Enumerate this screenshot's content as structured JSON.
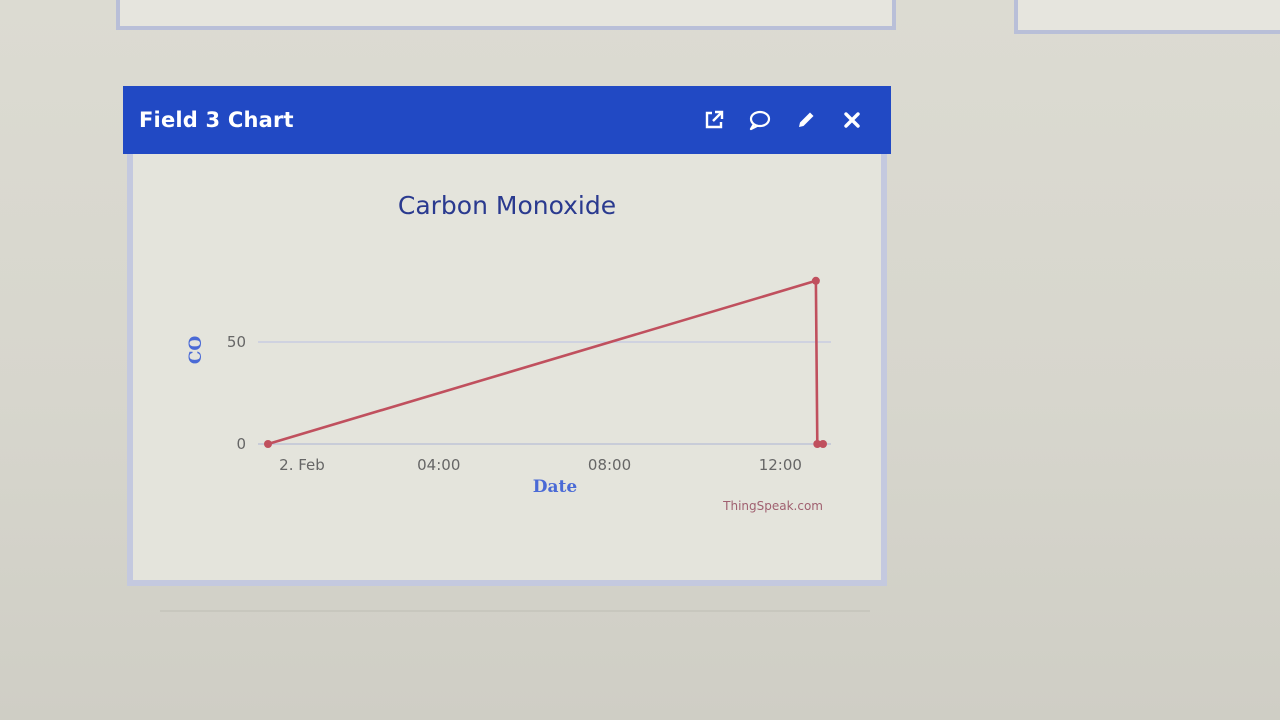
{
  "widget": {
    "title": "Field 3 Chart",
    "actions": [
      {
        "name": "open-external-button",
        "icon": "external-link-icon"
      },
      {
        "name": "comment-button",
        "icon": "comment-icon"
      },
      {
        "name": "edit-button",
        "icon": "pencil-icon"
      },
      {
        "name": "close-button",
        "icon": "close-icon"
      }
    ],
    "header_color": "#2149c4",
    "credit": "ThingSpeak.com"
  },
  "chart_data": {
    "type": "line",
    "title": "Carbon Monoxide",
    "xlabel": "Date",
    "ylabel": "CO",
    "x_ticks": [
      "2. Feb",
      "04:00",
      "08:00",
      "12:00"
    ],
    "y_ticks": [
      0,
      50
    ],
    "ylim": [
      0,
      100
    ],
    "grid": true,
    "legend": "none",
    "series": [
      {
        "color": "#c0505e",
        "points": [
          {
            "x": "2. Feb 00:00",
            "y": 0
          },
          {
            "x": "2. Feb 12:50",
            "y": 80
          },
          {
            "x": "2. Feb 12:52",
            "y": 0
          },
          {
            "x": "2. Feb 13:00",
            "y": 0
          }
        ]
      }
    ]
  }
}
